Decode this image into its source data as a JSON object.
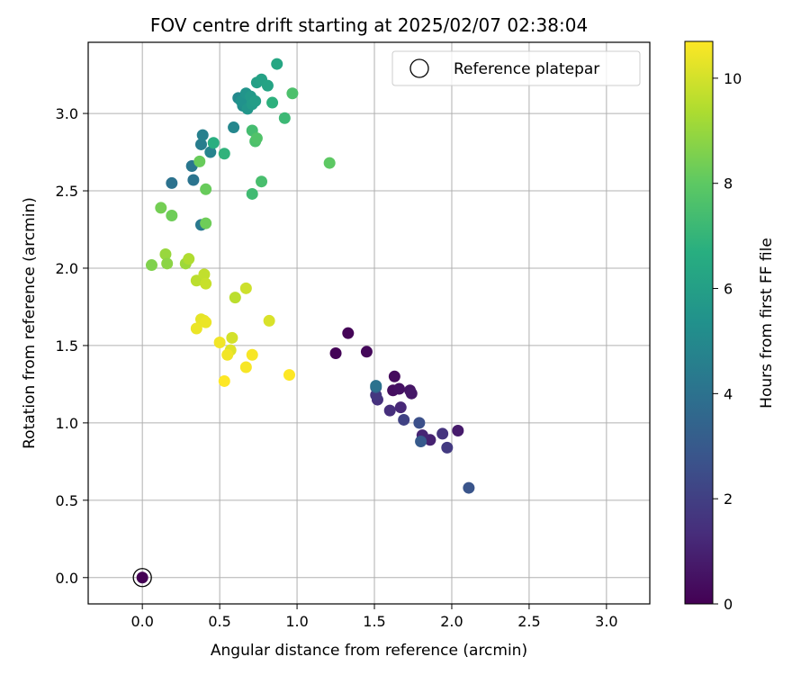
{
  "chart_data": {
    "type": "scatter",
    "title": "FOV centre drift starting at 2025/02/07 02:38:04",
    "xlabel": "Angular distance from reference (arcmin)",
    "ylabel": "Rotation from reference (arcmin)",
    "xlim": [
      -0.35,
      3.28
    ],
    "ylim": [
      -0.17,
      3.46
    ],
    "xticks": [
      0.0,
      0.5,
      1.0,
      1.5,
      2.0,
      2.5,
      3.0
    ],
    "xtick_labels": [
      "0.0",
      "0.5",
      "1.0",
      "1.5",
      "2.0",
      "2.5",
      "3.0"
    ],
    "yticks": [
      0.0,
      0.5,
      1.0,
      1.5,
      2.0,
      2.5,
      3.0
    ],
    "ytick_labels": [
      "0.0",
      "0.5",
      "1.0",
      "1.5",
      "2.0",
      "2.5",
      "3.0"
    ],
    "grid": true,
    "legend": {
      "placement": "top-right",
      "entries": [
        "Reference platepar"
      ]
    },
    "colorbar": {
      "label": "Hours from first FF file",
      "colormap": "viridis",
      "range": [
        0,
        10.7
      ],
      "ticks": [
        0,
        2,
        4,
        6,
        8,
        10
      ],
      "tick_labels": [
        "0",
        "2",
        "4",
        "6",
        "8",
        "10"
      ]
    },
    "reference_point": {
      "x": 0.0,
      "y": 0.0,
      "hours": 0.0
    },
    "points": [
      {
        "x": 1.33,
        "y": 1.58,
        "h": 0.1
      },
      {
        "x": 1.25,
        "y": 1.45,
        "h": 0.1
      },
      {
        "x": 1.45,
        "y": 1.46,
        "h": 0.2
      },
      {
        "x": 1.63,
        "y": 1.3,
        "h": 0.3
      },
      {
        "x": 1.62,
        "y": 1.21,
        "h": 0.4
      },
      {
        "x": 1.66,
        "y": 1.22,
        "h": 0.5
      },
      {
        "x": 1.73,
        "y": 1.21,
        "h": 0.6
      },
      {
        "x": 1.74,
        "y": 1.19,
        "h": 0.7
      },
      {
        "x": 2.04,
        "y": 0.95,
        "h": 0.8
      },
      {
        "x": 1.86,
        "y": 0.89,
        "h": 1.0
      },
      {
        "x": 1.81,
        "y": 0.92,
        "h": 1.1
      },
      {
        "x": 1.67,
        "y": 1.1,
        "h": 1.2
      },
      {
        "x": 1.6,
        "y": 1.08,
        "h": 1.4
      },
      {
        "x": 1.52,
        "y": 1.15,
        "h": 1.5
      },
      {
        "x": 1.94,
        "y": 0.93,
        "h": 1.6
      },
      {
        "x": 1.51,
        "y": 1.18,
        "h": 1.7
      },
      {
        "x": 1.97,
        "y": 0.84,
        "h": 1.8
      },
      {
        "x": 1.69,
        "y": 1.02,
        "h": 2.1
      },
      {
        "x": 1.79,
        "y": 1.0,
        "h": 2.6
      },
      {
        "x": 2.11,
        "y": 0.58,
        "h": 2.8
      },
      {
        "x": 1.8,
        "y": 0.88,
        "h": 3.0
      },
      {
        "x": 1.51,
        "y": 1.23,
        "h": 3.3
      },
      {
        "x": 1.51,
        "y": 1.24,
        "h": 4.0
      },
      {
        "x": 0.19,
        "y": 2.55,
        "h": 4.0
      },
      {
        "x": 0.32,
        "y": 2.66,
        "h": 4.2
      },
      {
        "x": 0.33,
        "y": 2.57,
        "h": 4.1
      },
      {
        "x": 0.38,
        "y": 2.28,
        "h": 4.3
      },
      {
        "x": 0.38,
        "y": 2.8,
        "h": 4.5
      },
      {
        "x": 0.39,
        "y": 2.86,
        "h": 4.6
      },
      {
        "x": 0.44,
        "y": 2.75,
        "h": 4.8
      },
      {
        "x": 0.59,
        "y": 2.91,
        "h": 4.9
      },
      {
        "x": 0.62,
        "y": 3.1,
        "h": 5.0
      },
      {
        "x": 0.65,
        "y": 3.05,
        "h": 5.2
      },
      {
        "x": 0.64,
        "y": 3.08,
        "h": 5.4
      },
      {
        "x": 0.67,
        "y": 3.13,
        "h": 5.5
      },
      {
        "x": 0.68,
        "y": 3.03,
        "h": 5.6
      },
      {
        "x": 0.7,
        "y": 3.11,
        "h": 5.7
      },
      {
        "x": 0.71,
        "y": 3.06,
        "h": 5.8
      },
      {
        "x": 0.73,
        "y": 3.08,
        "h": 5.9
      },
      {
        "x": 0.74,
        "y": 3.2,
        "h": 6.0
      },
      {
        "x": 0.77,
        "y": 3.22,
        "h": 6.1
      },
      {
        "x": 0.81,
        "y": 3.18,
        "h": 6.2
      },
      {
        "x": 0.87,
        "y": 3.32,
        "h": 6.3
      },
      {
        "x": 0.46,
        "y": 2.81,
        "h": 6.7
      },
      {
        "x": 0.53,
        "y": 2.74,
        "h": 6.9
      },
      {
        "x": 0.84,
        "y": 3.07,
        "h": 6.8
      },
      {
        "x": 0.92,
        "y": 2.97,
        "h": 7.2
      },
      {
        "x": 0.97,
        "y": 3.13,
        "h": 7.6
      },
      {
        "x": 0.71,
        "y": 2.89,
        "h": 7.4
      },
      {
        "x": 0.73,
        "y": 2.82,
        "h": 7.6
      },
      {
        "x": 0.74,
        "y": 2.84,
        "h": 7.7
      },
      {
        "x": 0.77,
        "y": 2.56,
        "h": 7.5
      },
      {
        "x": 0.71,
        "y": 2.48,
        "h": 7.3
      },
      {
        "x": 1.21,
        "y": 2.68,
        "h": 8.0
      },
      {
        "x": 0.37,
        "y": 2.69,
        "h": 8.2
      },
      {
        "x": 0.41,
        "y": 2.51,
        "h": 8.2
      },
      {
        "x": 0.41,
        "y": 2.29,
        "h": 8.3
      },
      {
        "x": 0.12,
        "y": 2.39,
        "h": 8.4
      },
      {
        "x": 0.19,
        "y": 2.34,
        "h": 8.3
      },
      {
        "x": 0.06,
        "y": 2.02,
        "h": 8.6
      },
      {
        "x": 0.15,
        "y": 2.09,
        "h": 9.0
      },
      {
        "x": 0.16,
        "y": 2.03,
        "h": 8.8
      },
      {
        "x": 0.28,
        "y": 2.03,
        "h": 9.1
      },
      {
        "x": 0.3,
        "y": 2.06,
        "h": 9.4
      },
      {
        "x": 0.35,
        "y": 1.92,
        "h": 9.6
      },
      {
        "x": 0.4,
        "y": 1.96,
        "h": 9.7
      },
      {
        "x": 0.41,
        "y": 1.9,
        "h": 9.8
      },
      {
        "x": 0.6,
        "y": 1.81,
        "h": 9.6
      },
      {
        "x": 0.67,
        "y": 1.87,
        "h": 9.9
      },
      {
        "x": 0.82,
        "y": 1.66,
        "h": 10.1
      },
      {
        "x": 0.58,
        "y": 1.55,
        "h": 10.0
      },
      {
        "x": 0.57,
        "y": 1.47,
        "h": 10.2
      },
      {
        "x": 0.38,
        "y": 1.67,
        "h": 10.3
      },
      {
        "x": 0.4,
        "y": 1.66,
        "h": 10.3
      },
      {
        "x": 0.41,
        "y": 1.65,
        "h": 10.4
      },
      {
        "x": 0.35,
        "y": 1.61,
        "h": 10.4
      },
      {
        "x": 0.5,
        "y": 1.52,
        "h": 10.5
      },
      {
        "x": 0.55,
        "y": 1.44,
        "h": 10.5
      },
      {
        "x": 0.71,
        "y": 1.44,
        "h": 10.6
      },
      {
        "x": 0.67,
        "y": 1.36,
        "h": 10.6
      },
      {
        "x": 0.53,
        "y": 1.27,
        "h": 10.7
      },
      {
        "x": 0.95,
        "y": 1.31,
        "h": 10.7
      }
    ]
  }
}
